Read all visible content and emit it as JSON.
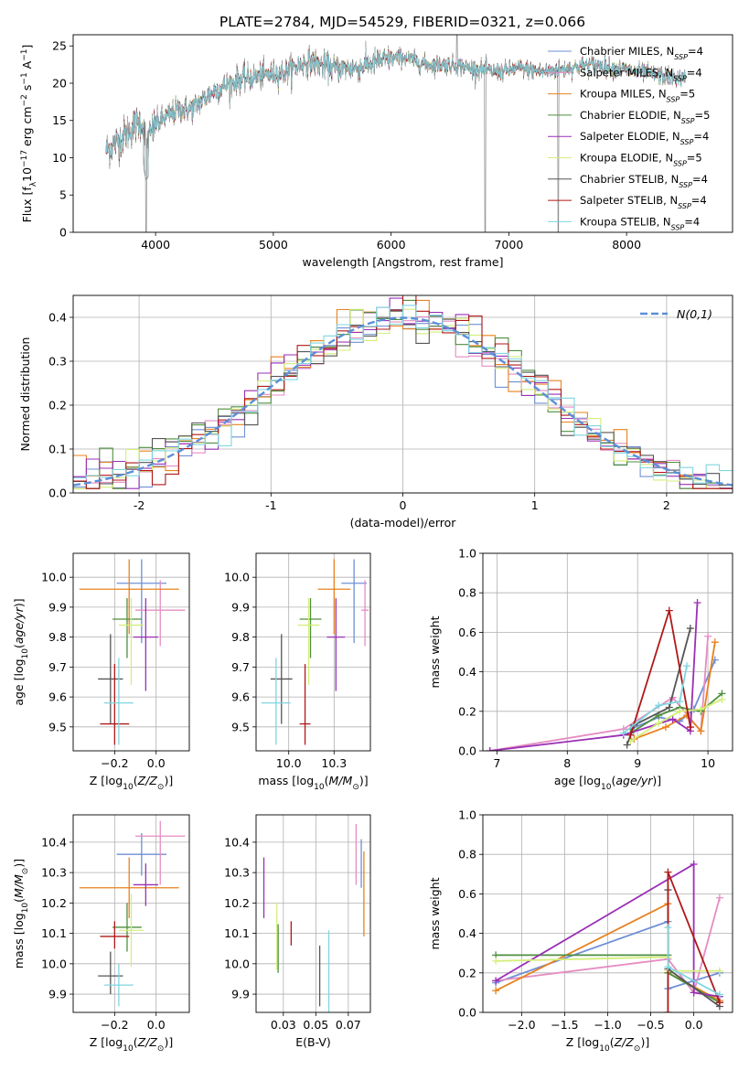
{
  "figure": {
    "title": "PLATE=2784, MJD=54529, FIBERID=0321, z=0.066"
  },
  "models": [
    {
      "name": "Chabrier MILES",
      "nssp": "4",
      "color": "#6f8fd6"
    },
    {
      "name": "Salpeter MILES",
      "nssp": "4",
      "color": "#e58cc2"
    },
    {
      "name": "Kroupa MILES",
      "nssp": "5",
      "color": "#e8821e"
    },
    {
      "name": "Chabrier ELODIE",
      "nssp": "5",
      "color": "#4f8f3f"
    },
    {
      "name": "Salpeter ELODIE",
      "nssp": "4",
      "color": "#9a2fb5"
    },
    {
      "name": "Kroupa ELODIE",
      "nssp": "5",
      "color": "#d4ee7a"
    },
    {
      "name": "Chabrier STELIB",
      "nssp": "4",
      "color": "#555555"
    },
    {
      "name": "Salpeter STELIB",
      "nssp": "4",
      "color": "#b01818"
    },
    {
      "name": "Kroupa STELIB",
      "nssp": "4",
      "color": "#7fd6e0"
    }
  ],
  "chart_data": [
    {
      "id": "spectrum",
      "type": "line",
      "xlabel": "wavelength [Angstrom, rest frame]",
      "ylabel": "Flux [f_λ10^−17 erg cm^−2 s^−1 A^−1]",
      "xlim": [
        3300,
        8900
      ],
      "ylim": [
        0,
        26.5
      ],
      "xticks": [
        4000,
        5000,
        6000,
        7000,
        8000
      ],
      "yticks": [
        0,
        5,
        10,
        15,
        20,
        25
      ],
      "grid": false,
      "legend": "top-right",
      "series_shape": {
        "x": [
          3580,
          3700,
          3800,
          3880,
          3920,
          4000,
          4100,
          4200,
          4300,
          4500,
          4700,
          4900,
          5100,
          5300,
          5500,
          5700,
          5900,
          6100,
          6300,
          6500,
          6700,
          6900,
          7100,
          7300,
          7500,
          7700,
          7900,
          8100,
          8300,
          8500
        ],
        "y": [
          11,
          12.5,
          14,
          15,
          12,
          14.5,
          15.5,
          16.5,
          16.5,
          19,
          20.5,
          21,
          21.5,
          23,
          22,
          22,
          23,
          23.5,
          22.5,
          22.5,
          22,
          21.5,
          22,
          21.5,
          22,
          22.5,
          22,
          21.5,
          21,
          20.5
        ]
      },
      "features": [
        {
          "x": 3920,
          "y": 0,
          "note": "absorption spike"
        },
        {
          "x": 6560,
          "y": 26.5,
          "note": "emission"
        },
        {
          "x": 6800,
          "y": 0,
          "note": "telluric"
        },
        {
          "x": 7420,
          "y": 0,
          "note": "telluric"
        }
      ]
    },
    {
      "id": "residuals",
      "type": "line",
      "xlabel": "(data-model)/error",
      "ylabel": "Normed distribution",
      "xlim": [
        -2.5,
        2.5
      ],
      "ylim": [
        0,
        0.45
      ],
      "xticks": [
        -2,
        -1,
        0,
        1,
        2
      ],
      "yticks": [
        0.0,
        0.1,
        0.2,
        0.3,
        0.4
      ],
      "grid": true,
      "legend": "top-right",
      "reference_label": "N(0,1)",
      "bin_width": 0.1
    },
    {
      "id": "age_vs_Z",
      "type": "scatter",
      "xlabel": "Z [log10(Z/Z⊙)]",
      "ylabel": "age  [log10(age/yr)]",
      "xlim": [
        -0.4,
        0.16
      ],
      "ylim": [
        9.42,
        10.08
      ],
      "xticks": [
        -0.2,
        0.0
      ],
      "yticks": [
        9.5,
        9.6,
        9.7,
        9.8,
        9.9,
        10.0
      ],
      "grid": true,
      "points": [
        {
          "model": "Chabrier MILES",
          "x": -0.07,
          "y": 9.98,
          "xerr": [
            0.12,
            0.12
          ],
          "yerr": [
            0.2,
            0.08
          ]
        },
        {
          "model": "Salpeter MILES",
          "x": 0.02,
          "y": 9.89,
          "xerr": [
            0.12,
            0.12
          ],
          "yerr": [
            0.12,
            0.1
          ]
        },
        {
          "model": "Kroupa MILES",
          "x": -0.13,
          "y": 9.96,
          "xerr": [
            0.24,
            0.24
          ],
          "yerr": [
            0.15,
            0.1
          ]
        },
        {
          "model": "Chabrier ELODIE",
          "x": -0.14,
          "y": 9.86,
          "xerr": [
            0.07,
            0.07
          ],
          "yerr": [
            0.13,
            0.07
          ]
        },
        {
          "model": "Salpeter ELODIE",
          "x": -0.05,
          "y": 9.8,
          "xerr": [
            0.06,
            0.06
          ],
          "yerr": [
            0.18,
            0.13
          ]
        },
        {
          "model": "Kroupa ELODIE",
          "x": -0.12,
          "y": 9.84,
          "xerr": [
            0.06,
            0.06
          ],
          "yerr": [
            0.2,
            0.09
          ]
        },
        {
          "model": "Chabrier STELIB",
          "x": -0.22,
          "y": 9.66,
          "xerr": [
            0.06,
            0.06
          ],
          "yerr": [
            0.15,
            0.15
          ]
        },
        {
          "model": "Salpeter STELIB",
          "x": -0.2,
          "y": 9.51,
          "xerr": [
            0.07,
            0.07
          ],
          "yerr": [
            0.07,
            0.2
          ]
        },
        {
          "model": "Kroupa STELIB",
          "x": -0.18,
          "y": 9.58,
          "xerr": [
            0.07,
            0.07
          ],
          "yerr": [
            0.14,
            0.15
          ]
        }
      ]
    },
    {
      "id": "age_vs_mass",
      "type": "scatter",
      "xlabel": "mass [log10(M/M⊙)]",
      "ylabel": "",
      "xlim": [
        9.82,
        10.45
      ],
      "ylim": [
        9.42,
        10.08
      ],
      "xticks": [
        10.0,
        10.25
      ],
      "yticks": [
        9.5,
        9.6,
        9.7,
        9.8,
        9.9,
        10.0
      ],
      "grid": true,
      "points": [
        {
          "model": "Chabrier MILES",
          "x": 10.36,
          "y": 9.98,
          "xerr": [
            0.07,
            0.07
          ],
          "yerr": [
            0.2,
            0.08
          ]
        },
        {
          "model": "Salpeter MILES",
          "x": 10.42,
          "y": 9.89,
          "xerr": [
            0.02,
            0.02
          ],
          "yerr": [
            0.12,
            0.1
          ]
        },
        {
          "model": "Kroupa MILES",
          "x": 10.25,
          "y": 9.96,
          "xerr": [
            0.09,
            0.09
          ],
          "yerr": [
            0.15,
            0.1
          ]
        },
        {
          "model": "Chabrier ELODIE",
          "x": 10.12,
          "y": 9.86,
          "xerr": [
            0.06,
            0.06
          ],
          "yerr": [
            0.13,
            0.07
          ]
        },
        {
          "model": "Salpeter ELODIE",
          "x": 10.26,
          "y": 9.8,
          "xerr": [
            0.05,
            0.05
          ],
          "yerr": [
            0.18,
            0.13
          ]
        },
        {
          "model": "Kroupa ELODIE",
          "x": 10.11,
          "y": 9.84,
          "xerr": [
            0.06,
            0.06
          ],
          "yerr": [
            0.2,
            0.09
          ]
        },
        {
          "model": "Chabrier STELIB",
          "x": 9.96,
          "y": 9.66,
          "xerr": [
            0.06,
            0.06
          ],
          "yerr": [
            0.15,
            0.15
          ]
        },
        {
          "model": "Salpeter STELIB",
          "x": 10.09,
          "y": 9.51,
          "xerr": [
            0.03,
            0.03
          ],
          "yerr": [
            0.07,
            0.2
          ]
        },
        {
          "model": "Kroupa STELIB",
          "x": 9.93,
          "y": 9.58,
          "xerr": [
            0.08,
            0.08
          ],
          "yerr": [
            0.14,
            0.15
          ]
        }
      ]
    },
    {
      "id": "weight_vs_age",
      "type": "line",
      "xlabel": "age  [log10(age/yr)]",
      "ylabel": "mass weight",
      "xlim": [
        6.8,
        10.35
      ],
      "ylim": [
        0,
        1.0
      ],
      "xticks": [
        7,
        8,
        9,
        10
      ],
      "yticks": [
        0.0,
        0.2,
        0.4,
        0.6,
        0.8,
        1.0
      ],
      "grid": true,
      "series": [
        {
          "model": "Chabrier MILES",
          "x": [
            8.9,
            9.3,
            9.6,
            9.8,
            10.1
          ],
          "y": [
            0.11,
            0.17,
            0.15,
            0.21,
            0.46
          ]
        },
        {
          "model": "Salpeter MILES",
          "x": [
            6.9,
            8.8,
            9.5,
            9.9,
            10.0
          ],
          "y": [
            0.0,
            0.11,
            0.27,
            0.1,
            0.58
          ]
        },
        {
          "model": "Kroupa MILES",
          "x": [
            8.95,
            9.4,
            9.7,
            9.9,
            10.1
          ],
          "y": [
            0.06,
            0.12,
            0.18,
            0.1,
            0.55
          ]
        },
        {
          "model": "Chabrier ELODIE",
          "x": [
            8.9,
            9.3,
            9.6,
            9.9,
            10.2
          ],
          "y": [
            0.09,
            0.18,
            0.22,
            0.2,
            0.29
          ]
        },
        {
          "model": "Salpeter ELODIE",
          "x": [
            6.9,
            8.8,
            9.5,
            9.75,
            9.85
          ],
          "y": [
            0.0,
            0.08,
            0.16,
            0.1,
            0.75
          ]
        },
        {
          "model": "Kroupa ELODIE",
          "x": [
            8.9,
            9.3,
            9.6,
            9.9,
            10.2
          ],
          "y": [
            0.05,
            0.14,
            0.2,
            0.21,
            0.26
          ]
        },
        {
          "model": "Chabrier STELIB",
          "x": [
            8.85,
            8.95,
            9.45,
            9.75
          ],
          "y": [
            0.03,
            0.13,
            0.22,
            0.62
          ]
        },
        {
          "model": "Salpeter STELIB",
          "x": [
            8.9,
            9.45,
            9.75
          ],
          "y": [
            0.08,
            0.71,
            0.12
          ]
        },
        {
          "model": "Kroupa STELIB",
          "x": [
            8.8,
            9.3,
            9.6,
            9.7
          ],
          "y": [
            0.09,
            0.23,
            0.25,
            0.43
          ]
        }
      ]
    },
    {
      "id": "mass_vs_Z",
      "type": "scatter",
      "xlabel": "Z [log10(Z/Z⊙)]",
      "ylabel": "mass [log10(M/M⊙)]",
      "xlim": [
        -0.4,
        0.16
      ],
      "ylim": [
        9.84,
        10.49
      ],
      "xticks": [
        -0.2,
        0.0
      ],
      "yticks": [
        9.9,
        10.0,
        10.1,
        10.2,
        10.3,
        10.4
      ],
      "grid": true,
      "points": [
        {
          "model": "Chabrier MILES",
          "x": -0.07,
          "y": 10.36,
          "xerr": [
            0.12,
            0.12
          ],
          "yerr": [
            0.07,
            0.07
          ]
        },
        {
          "model": "Salpeter MILES",
          "x": 0.02,
          "y": 10.42,
          "xerr": [
            0.12,
            0.12
          ],
          "yerr": [
            0.16,
            0.05
          ]
        },
        {
          "model": "Kroupa MILES",
          "x": -0.13,
          "y": 10.25,
          "xerr": [
            0.24,
            0.24
          ],
          "yerr": [
            0.1,
            0.1
          ]
        },
        {
          "model": "Chabrier ELODIE",
          "x": -0.14,
          "y": 10.12,
          "xerr": [
            0.07,
            0.07
          ],
          "yerr": [
            0.08,
            0.08
          ]
        },
        {
          "model": "Salpeter ELODIE",
          "x": -0.05,
          "y": 10.26,
          "xerr": [
            0.06,
            0.06
          ],
          "yerr": [
            0.07,
            0.07
          ]
        },
        {
          "model": "Kroupa ELODIE",
          "x": -0.12,
          "y": 10.11,
          "xerr": [
            0.06,
            0.06
          ],
          "yerr": [
            0.12,
            0.12
          ]
        },
        {
          "model": "Chabrier STELIB",
          "x": -0.22,
          "y": 9.96,
          "xerr": [
            0.06,
            0.06
          ],
          "yerr": [
            0.06,
            0.08
          ]
        },
        {
          "model": "Salpeter STELIB",
          "x": -0.2,
          "y": 10.09,
          "xerr": [
            0.07,
            0.07
          ],
          "yerr": [
            0.04,
            0.05
          ]
        },
        {
          "model": "Kroupa STELIB",
          "x": -0.18,
          "y": 9.93,
          "xerr": [
            0.07,
            0.07
          ],
          "yerr": [
            0.07,
            0.07
          ]
        }
      ]
    },
    {
      "id": "mass_vs_ebv",
      "type": "scatter",
      "xlabel": "E(B-V)",
      "ylabel": "",
      "xlim": [
        0.004,
        0.092
      ],
      "ylim": [
        9.84,
        10.49
      ],
      "xticks": [
        0.025,
        0.05,
        0.075
      ],
      "yticks": [
        9.9,
        10.0,
        10.1,
        10.2,
        10.3,
        10.4
      ],
      "grid": true,
      "points": [
        {
          "model": "Salpeter ELODIE",
          "x": 0.01,
          "y": 10.25,
          "yerr": [
            0.1,
            0.1
          ]
        },
        {
          "model": "Kroupa ELODIE",
          "x": 0.02,
          "y": 10.09,
          "yerr": [
            0.11,
            0.11
          ]
        },
        {
          "model": "Chabrier ELODIE",
          "x": 0.021,
          "y": 10.05,
          "yerr": [
            0.08,
            0.08
          ]
        },
        {
          "model": "Salpeter STELIB",
          "x": 0.031,
          "y": 10.1,
          "yerr": [
            0.04,
            0.04
          ]
        },
        {
          "model": "Chabrier STELIB",
          "x": 0.053,
          "y": 9.96,
          "yerr": [
            0.1,
            0.1
          ]
        },
        {
          "model": "Kroupa STELIB",
          "x": 0.06,
          "y": 9.96,
          "yerr": [
            0.15,
            0.15
          ]
        },
        {
          "model": "Salpeter MILES",
          "x": 0.081,
          "y": 10.36,
          "yerr": [
            0.1,
            0.1
          ]
        },
        {
          "model": "Chabrier MILES",
          "x": 0.085,
          "y": 10.33,
          "yerr": [
            0.08,
            0.08
          ]
        },
        {
          "model": "Kroupa MILES",
          "x": 0.087,
          "y": 10.23,
          "yerr": [
            0.14,
            0.14
          ]
        }
      ]
    },
    {
      "id": "weight_vs_Z",
      "type": "line",
      "xlabel": "Z [log10(Z/Z⊙)]",
      "ylabel": "mass weight",
      "xlim": [
        -2.45,
        0.45
      ],
      "ylim": [
        0,
        1.0
      ],
      "xticks": [
        -2.0,
        -1.5,
        -1.0,
        -0.5,
        0.0
      ],
      "yticks": [
        0.0,
        0.2,
        0.4,
        0.6,
        0.8,
        1.0
      ],
      "grid": true,
      "series": [
        {
          "model": "Chabrier MILES",
          "x": [
            -2.3,
            -0.3,
            -0.3,
            0.3
          ],
          "y": [
            0.15,
            0.46,
            0.12,
            0.2
          ]
        },
        {
          "model": "Salpeter MILES",
          "x": [
            -2.3,
            -0.3,
            0.0,
            0.3
          ],
          "y": [
            0.16,
            0.27,
            0.1,
            0.58
          ]
        },
        {
          "model": "Kroupa MILES",
          "x": [
            -2.3,
            -0.3,
            -0.3,
            0.3
          ],
          "y": [
            0.11,
            0.55,
            0.2,
            0.06
          ]
        },
        {
          "model": "Chabrier ELODIE",
          "x": [
            -2.3,
            -0.3,
            -0.3,
            0.3
          ],
          "y": [
            0.29,
            0.29,
            0.2,
            0.05
          ]
        },
        {
          "model": "Salpeter ELODIE",
          "x": [
            -2.3,
            0.0,
            0.0,
            0.3
          ],
          "y": [
            0.16,
            0.75,
            0.1,
            0.08
          ]
        },
        {
          "model": "Kroupa ELODIE",
          "x": [
            -2.3,
            -0.3,
            -0.3,
            0.3
          ],
          "y": [
            0.26,
            0.28,
            0.21,
            0.21
          ]
        },
        {
          "model": "Chabrier STELIB",
          "x": [
            -0.3,
            -0.3,
            0.3
          ],
          "y": [
            0.62,
            0.22,
            0.03
          ]
        },
        {
          "model": "Salpeter STELIB",
          "x": [
            -0.3,
            -0.3,
            0.3
          ],
          "y": [
            0.0,
            0.71,
            0.05
          ]
        },
        {
          "model": "Kroupa STELIB",
          "x": [
            -0.3,
            -0.3,
            0.3
          ],
          "y": [
            0.43,
            0.23,
            0.09
          ]
        }
      ]
    }
  ]
}
